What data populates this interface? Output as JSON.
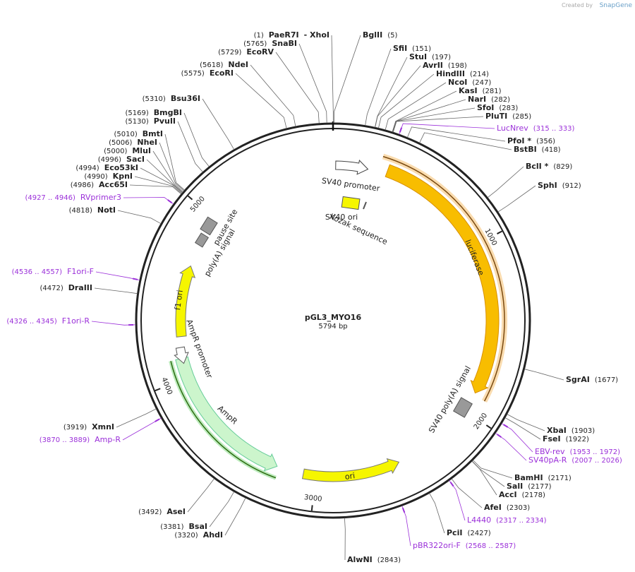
{
  "header": {
    "created_by": "Created by",
    "brand": "SnapGene"
  },
  "map": {
    "name": "pGL3_MYO16",
    "length": "5794 bp",
    "ticks": [
      "1000",
      "2000",
      "3000",
      "4000",
      "5000"
    ],
    "enzymes_right": [
      {
        "name": "BglII",
        "pos": "(5)"
      },
      {
        "name": "SfiI",
        "pos": "(151)"
      },
      {
        "name": "StuI",
        "pos": "(197)"
      },
      {
        "name": "AvrII",
        "pos": "(198)"
      },
      {
        "name": "HindIII",
        "pos": "(214)"
      },
      {
        "name": "NcoI",
        "pos": "(247)"
      },
      {
        "name": "KasI",
        "pos": "(281)"
      },
      {
        "name": "NarI",
        "pos": "(282)"
      },
      {
        "name": "SfoI",
        "pos": "(283)"
      },
      {
        "name": "PluTI",
        "pos": "(285)"
      },
      {
        "name": "PfoI *",
        "pos": "(356)"
      },
      {
        "name": "BstBI",
        "pos": "(418)"
      },
      {
        "name": "BclI *",
        "pos": "(829)"
      },
      {
        "name": "SphI",
        "pos": "(912)"
      },
      {
        "name": "SgrAI",
        "pos": "(1677)"
      },
      {
        "name": "XbaI",
        "pos": "(1903)"
      },
      {
        "name": "FseI",
        "pos": "(1922)"
      },
      {
        "name": "BamHI",
        "pos": "(2171)"
      },
      {
        "name": "SalI",
        "pos": "(2177)"
      },
      {
        "name": "AccI",
        "pos": "(2178)"
      },
      {
        "name": "AfeI",
        "pos": "(2303)"
      },
      {
        "name": "PciI",
        "pos": "(2427)"
      },
      {
        "name": "AlwNI",
        "pos": "(2843)"
      }
    ],
    "enzymes_left": [
      {
        "pos": "(1)",
        "name": "PaeR7I",
        "alt": "- XhoI"
      },
      {
        "pos": "(5765)",
        "name": "SnaBI"
      },
      {
        "pos": "(5729)",
        "name": "EcoRV"
      },
      {
        "pos": "(5618)",
        "name": "NdeI"
      },
      {
        "pos": "(5575)",
        "name": "EcoRI"
      },
      {
        "pos": "(5310)",
        "name": "Bsu36I"
      },
      {
        "pos": "(5169)",
        "name": "BmgBI"
      },
      {
        "pos": "(5130)",
        "name": "PvuII"
      },
      {
        "pos": "(5010)",
        "name": "BmtI"
      },
      {
        "pos": "(5006)",
        "name": "NheI"
      },
      {
        "pos": "(5000)",
        "name": "MluI"
      },
      {
        "pos": "(4996)",
        "name": "SacI"
      },
      {
        "pos": "(4994)",
        "name": "Eco53kI"
      },
      {
        "pos": "(4990)",
        "name": "KpnI"
      },
      {
        "pos": "(4986)",
        "name": "Acc65I"
      },
      {
        "pos": "(4818)",
        "name": "NotI"
      },
      {
        "pos": "(4472)",
        "name": "DraIII"
      },
      {
        "pos": "(3919)",
        "name": "XmnI"
      },
      {
        "pos": "(3492)",
        "name": "AseI"
      },
      {
        "pos": "(3381)",
        "name": "BsaI"
      },
      {
        "pos": "(3320)",
        "name": "AhdI"
      }
    ],
    "primers_right": [
      {
        "name": "LucNrev",
        "range": "(315 .. 333)"
      },
      {
        "name": "EBV-rev",
        "range": "(1953 .. 1972)"
      },
      {
        "name": "SV40pA-R",
        "range": "(2007 .. 2026)"
      },
      {
        "name": "L4440",
        "range": "(2317 .. 2334)"
      },
      {
        "name": "pBR322ori-F",
        "range": "(2568 .. 2587)"
      }
    ],
    "primers_left": [
      {
        "range": "(4927 .. 4946)",
        "name": "RVprimer3"
      },
      {
        "range": "(4536 .. 4557)",
        "name": "F1ori-F"
      },
      {
        "range": "(4326 .. 4345)",
        "name": "F1ori-R"
      },
      {
        "range": "(3870 .. 3889)",
        "name": "Amp-R"
      }
    ],
    "features": [
      "SV40 promoter",
      "SV40 ori",
      "Kozak sequence",
      "luciferase",
      "SV40 poly(A) signal",
      "ori",
      "AmpR",
      "AmpR promoter",
      "f1 ori",
      "poly(A) signal",
      "pause site"
    ]
  }
}
